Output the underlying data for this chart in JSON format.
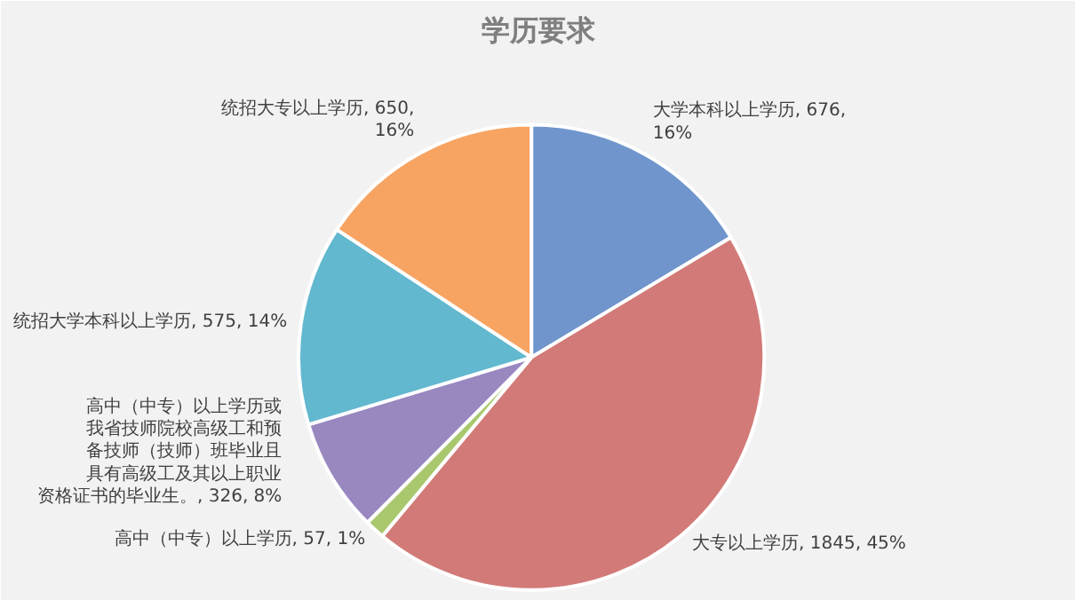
{
  "chart_data": {
    "type": "pie",
    "title": "学历要求",
    "categories": [
      "大学本科以上学历",
      "大专以上学历",
      "高中（中专）以上学历",
      "高中（中专）以上学历或我省技师院校高级工和预备技师（技师）班毕业且具有高级工及其以上职业资格证书的毕业生。",
      "统招大学本科以上学历",
      "统招大专以上学历"
    ],
    "values": [
      676,
      1845,
      57,
      326,
      575,
      650
    ],
    "value_labels": [
      ", 676, 16%",
      ", 1845, 45%",
      ", 57, 1%",
      ", 326, 8%",
      ", 575, 14%",
      ", 650, 16%"
    ],
    "colors": [
      "#6f95cc",
      "#d27a78",
      "#a9c86e",
      "#9987c0",
      "#62b8cf",
      "#f7a463"
    ]
  }
}
